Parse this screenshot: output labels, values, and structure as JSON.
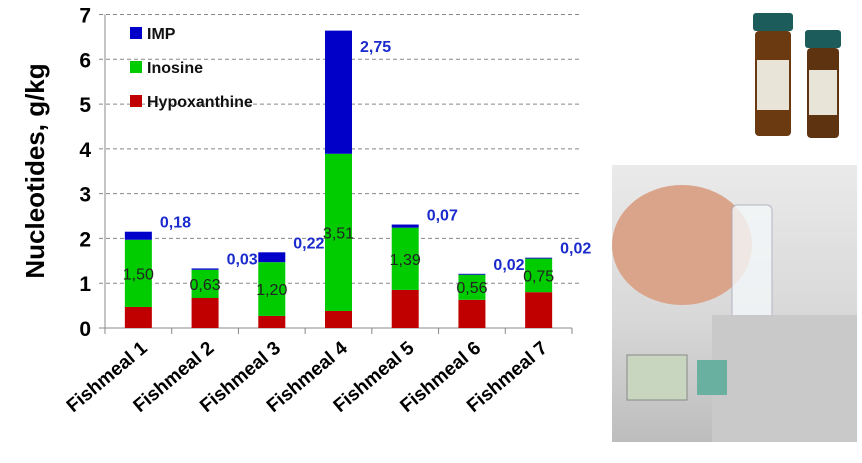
{
  "chart_data": {
    "type": "bar",
    "stacked": true,
    "ylabel": "Nucleotides, g/kg",
    "xlabel": "",
    "ylim": [
      0,
      7
    ],
    "yticks": [
      "0",
      "1",
      "2",
      "3",
      "4",
      "5",
      "6",
      "7"
    ],
    "grid": true,
    "legend_position": "top-left",
    "categories": [
      "Fishmeal 1",
      "Fishmeal 2",
      "Fishmeal 3",
      "Fishmeal 4",
      "Fishmeal 5",
      "Fishmeal 6",
      "Fishmeal 7"
    ],
    "series": [
      {
        "name": "Hypoxanthine",
        "color": "#c00000",
        "values": [
          0.47,
          0.67,
          0.27,
          0.38,
          0.85,
          0.63,
          0.8
        ],
        "labels": []
      },
      {
        "name": "Inosine",
        "color": "#00cc00",
        "values": [
          1.5,
          0.63,
          1.2,
          3.51,
          1.39,
          0.56,
          0.75
        ],
        "labels": [
          "1,50",
          "0,63",
          "1,20",
          "3,51",
          "1,39",
          "0,56",
          "0,75"
        ]
      },
      {
        "name": "IMP",
        "color": "#0000c8",
        "values": [
          0.18,
          0.03,
          0.22,
          2.75,
          0.07,
          0.02,
          0.02
        ],
        "labels": [
          "0,18",
          "0,03",
          "0,22",
          "2,75",
          "0,07",
          "0,02",
          "0,02"
        ]
      }
    ]
  }
}
